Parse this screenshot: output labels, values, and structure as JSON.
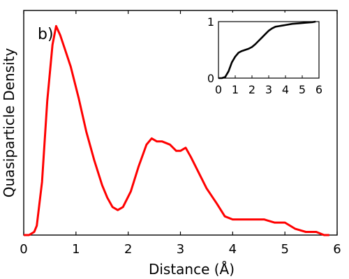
{
  "chart_data": [
    {
      "type": "line",
      "panel_label": "b)",
      "xlabel": "Distance (Å)",
      "ylabel": "Quasiparticle Density",
      "xlim": [
        0,
        6
      ],
      "xticks": [
        "0",
        "1",
        "2",
        "3",
        "4",
        "5",
        "6"
      ],
      "yticks_shown": false,
      "grid": false,
      "series": [
        {
          "color": "#ff0000",
          "x": [
            0.0,
            0.1,
            0.2,
            0.25,
            0.35,
            0.45,
            0.55,
            0.62,
            0.7,
            0.78,
            0.9,
            1.05,
            1.2,
            1.35,
            1.5,
            1.6,
            1.7,
            1.8,
            1.9,
            2.05,
            2.2,
            2.35,
            2.45,
            2.55,
            2.65,
            2.8,
            2.92,
            3.0,
            3.1,
            3.2,
            3.35,
            3.5,
            3.7,
            3.85,
            4.0,
            4.1,
            4.2,
            4.3,
            4.4,
            4.6,
            4.8,
            5.0,
            5.2,
            5.4,
            5.6,
            5.75,
            5.85
          ],
          "y": [
            0.0,
            0.0,
            0.01,
            0.03,
            0.17,
            0.43,
            0.61,
            0.67,
            0.64,
            0.6,
            0.54,
            0.44,
            0.33,
            0.24,
            0.16,
            0.12,
            0.09,
            0.08,
            0.09,
            0.14,
            0.22,
            0.29,
            0.31,
            0.3,
            0.3,
            0.29,
            0.27,
            0.27,
            0.28,
            0.25,
            0.2,
            0.15,
            0.1,
            0.06,
            0.05,
            0.05,
            0.05,
            0.05,
            0.05,
            0.05,
            0.04,
            0.04,
            0.02,
            0.01,
            0.01,
            0.0,
            0.0
          ]
        }
      ]
    },
    {
      "type": "line",
      "inset": true,
      "xlim": [
        0,
        6
      ],
      "ylim": [
        0,
        1
      ],
      "xticks": [
        "0",
        "1",
        "2",
        "3",
        "4",
        "5",
        "6"
      ],
      "yticks": [
        "0",
        "1"
      ],
      "grid": false,
      "series": [
        {
          "color": "#000000",
          "x": [
            0.0,
            0.2,
            0.4,
            0.6,
            0.8,
            1.0,
            1.2,
            1.4,
            1.6,
            1.8,
            2.0,
            2.2,
            2.4,
            2.6,
            2.8,
            3.0,
            3.2,
            3.4,
            3.6,
            3.8,
            4.0,
            4.4,
            4.8,
            5.2,
            5.6,
            5.8
          ],
          "y": [
            0.0,
            0.0,
            0.02,
            0.12,
            0.28,
            0.38,
            0.45,
            0.48,
            0.5,
            0.52,
            0.55,
            0.6,
            0.66,
            0.72,
            0.78,
            0.84,
            0.88,
            0.91,
            0.92,
            0.93,
            0.94,
            0.96,
            0.97,
            0.98,
            0.99,
            1.0
          ]
        }
      ]
    }
  ]
}
